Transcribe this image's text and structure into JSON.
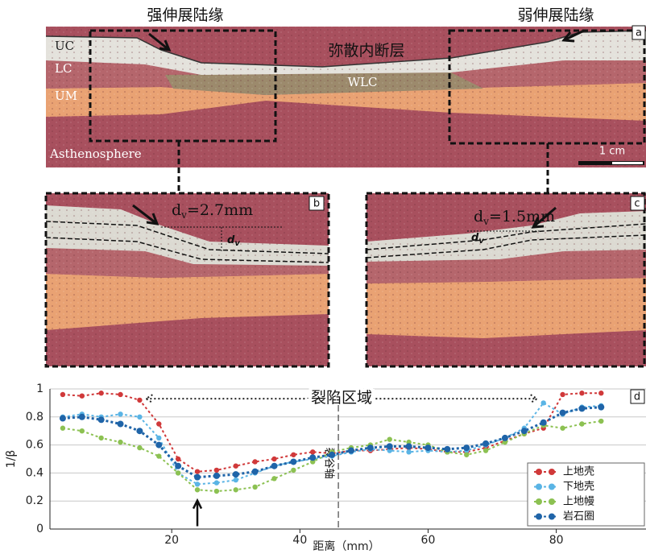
{
  "panel_a": {
    "label": "a",
    "title_left": "强伸展陆缘",
    "title_right": "弱伸展陆缘",
    "fault_label": "弥散内断层",
    "layers": [
      "UC",
      "LC",
      "UM",
      "Asthenosphere"
    ],
    "wlc": "WLC",
    "scale": "1 cm"
  },
  "panel_b": {
    "label": "b",
    "dv": "d",
    "dv_sub": "v",
    "dv_rest": "=2.7mm",
    "marker": "d",
    "marker_sub": "v"
  },
  "panel_c": {
    "label": "c",
    "dv": "d",
    "dv_sub": "v",
    "dv_rest": "=1.5mm",
    "marker": "d",
    "marker_sub": "v"
  },
  "chart_data": {
    "type": "line",
    "label": "d",
    "xlabel": "距离（mm）",
    "ylabel": "1/β",
    "x": [
      3,
      6,
      9,
      12,
      15,
      18,
      21,
      24,
      27,
      30,
      33,
      36,
      39,
      42,
      45,
      48,
      51,
      54,
      57,
      60,
      63,
      66,
      69,
      72,
      75,
      78,
      81,
      84,
      87
    ],
    "series": [
      {
        "name": "上地壳",
        "color": "#d0393a",
        "values": [
          0.96,
          0.95,
          0.97,
          0.96,
          0.92,
          0.75,
          0.5,
          0.41,
          0.42,
          0.45,
          0.48,
          0.5,
          0.53,
          0.55,
          0.54,
          0.56,
          0.56,
          0.57,
          0.58,
          0.57,
          0.55,
          0.55,
          0.58,
          0.63,
          0.68,
          0.72,
          0.96,
          0.97,
          0.97
        ]
      },
      {
        "name": "下地壳",
        "color": "#5ab4e5",
        "values": [
          0.8,
          0.82,
          0.8,
          0.82,
          0.8,
          0.65,
          0.4,
          0.32,
          0.33,
          0.35,
          0.4,
          0.45,
          0.48,
          0.5,
          0.52,
          0.55,
          0.57,
          0.56,
          0.55,
          0.56,
          0.55,
          0.56,
          0.6,
          0.65,
          0.72,
          0.9,
          0.82,
          0.87,
          0.88
        ]
      },
      {
        "name": "上地幔",
        "color": "#8cc152",
        "values": [
          0.72,
          0.7,
          0.65,
          0.62,
          0.58,
          0.52,
          0.4,
          0.28,
          0.27,
          0.28,
          0.3,
          0.36,
          0.42,
          0.48,
          0.55,
          0.58,
          0.6,
          0.64,
          0.62,
          0.6,
          0.55,
          0.53,
          0.56,
          0.62,
          0.68,
          0.74,
          0.72,
          0.75,
          0.77
        ]
      },
      {
        "name": "岩石圈",
        "color": "#1f64a8",
        "values": [
          0.79,
          0.8,
          0.78,
          0.75,
          0.7,
          0.6,
          0.45,
          0.37,
          0.38,
          0.39,
          0.41,
          0.45,
          0.48,
          0.51,
          0.53,
          0.56,
          0.58,
          0.59,
          0.59,
          0.58,
          0.57,
          0.58,
          0.61,
          0.65,
          0.7,
          0.76,
          0.83,
          0.86,
          0.87
        ]
      }
    ],
    "xlim": [
      1,
      94
    ],
    "ylim": [
      0,
      1
    ],
    "xticks": [
      20,
      40,
      60,
      80
    ],
    "yticks": [
      0,
      0.2,
      0.4,
      0.6,
      0.8,
      1
    ],
    "grid": true,
    "legend": "lower right",
    "annotations": [
      {
        "text": "裂陷区域",
        "x": [
          16,
          77
        ],
        "y": 0.93
      },
      {
        "text": "裂谷轴",
        "x": 46,
        "y": 0.7
      },
      {
        "x": 24,
        "y": 0.02
      }
    ]
  }
}
